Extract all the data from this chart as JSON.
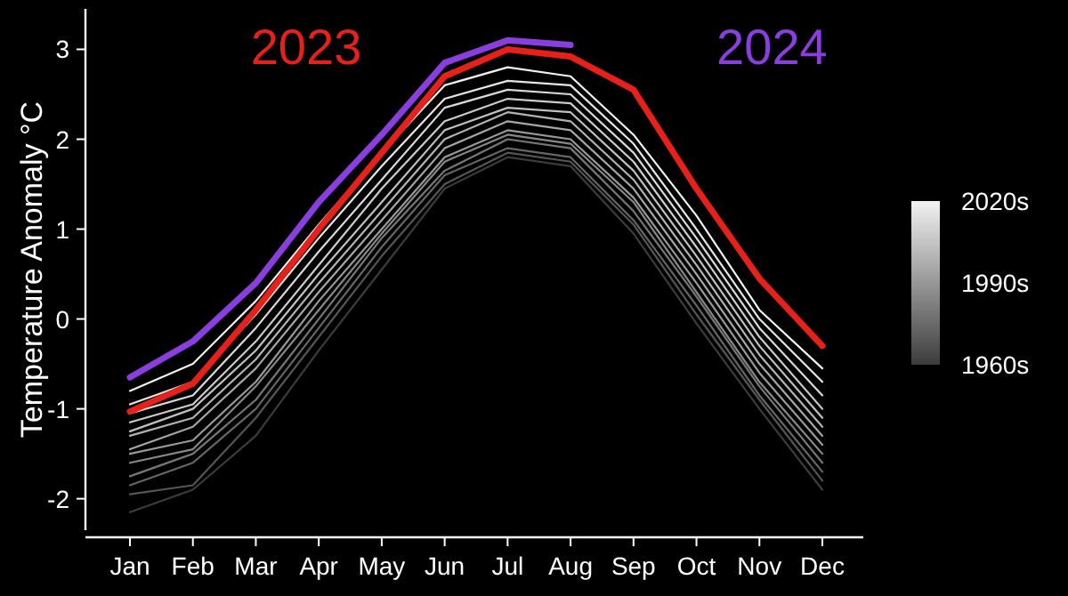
{
  "chart_data": {
    "type": "line",
    "ylabel": "Temperature Anomaly °C",
    "categories": [
      "Jan",
      "Feb",
      "Mar",
      "Apr",
      "May",
      "Jun",
      "Jul",
      "Aug",
      "Sep",
      "Oct",
      "Nov",
      "Dec"
    ],
    "ylim": [
      -2.35,
      3.45
    ],
    "yticks": [
      -2,
      -1,
      0,
      1,
      2,
      3
    ],
    "grid": false,
    "marker": "none",
    "line_style": "solid",
    "clim": [
      1960,
      2020
    ],
    "cticks": [
      {
        "value": 1960,
        "label": "1960s"
      },
      {
        "value": 1990,
        "label": "1990s"
      },
      {
        "value": 2020,
        "label": "2020s"
      }
    ],
    "series": [
      {
        "color": "#3c3c3c",
        "values": [
          -2.15,
          -1.9,
          -1.3,
          -0.35,
          0.55,
          1.45,
          1.8,
          1.7,
          0.95,
          -0.05,
          -1.0,
          -1.9
        ]
      },
      {
        "color": "#555555",
        "values": [
          -1.95,
          -1.85,
          -1.1,
          -0.2,
          0.7,
          1.5,
          1.85,
          1.75,
          1.05,
          0.05,
          -0.9,
          -1.8
        ]
      },
      {
        "color": "#666666",
        "values": [
          -1.85,
          -1.6,
          -1.0,
          -0.1,
          0.8,
          1.6,
          1.9,
          1.8,
          1.1,
          0.15,
          -0.85,
          -1.7
        ]
      },
      {
        "color": "#777777",
        "values": [
          -1.75,
          -1.5,
          -0.9,
          0.0,
          0.9,
          1.65,
          2.0,
          1.9,
          1.2,
          0.25,
          -0.75,
          -1.6
        ]
      },
      {
        "color": "#888888",
        "values": [
          -1.6,
          -1.45,
          -0.75,
          0.1,
          0.95,
          1.75,
          2.05,
          1.95,
          1.3,
          0.3,
          -0.7,
          -1.5
        ]
      },
      {
        "color": "#999999",
        "values": [
          -1.5,
          -1.35,
          -0.7,
          0.2,
          1.0,
          1.8,
          2.1,
          2.0,
          1.35,
          0.4,
          -0.6,
          -1.4
        ]
      },
      {
        "color": "#a6a6a6",
        "values": [
          -1.45,
          -1.2,
          -0.55,
          0.3,
          1.1,
          1.9,
          2.2,
          2.1,
          1.45,
          0.5,
          -0.5,
          -1.3
        ]
      },
      {
        "color": "#b3b3b3",
        "values": [
          -1.3,
          -1.1,
          -0.45,
          0.4,
          1.2,
          2.0,
          2.3,
          2.2,
          1.55,
          0.6,
          -0.4,
          -1.2
        ]
      },
      {
        "color": "#c0c0c0",
        "values": [
          -1.25,
          -1.0,
          -0.35,
          0.5,
          1.3,
          2.1,
          2.35,
          2.3,
          1.65,
          0.7,
          -0.3,
          -1.1
        ]
      },
      {
        "color": "#cccccc",
        "values": [
          -1.15,
          -0.95,
          -0.25,
          0.6,
          1.45,
          2.2,
          2.45,
          2.4,
          1.75,
          0.8,
          -0.2,
          -1.0
        ]
      },
      {
        "color": "#d9d9d9",
        "values": [
          -1.05,
          -0.85,
          -0.1,
          0.75,
          1.55,
          2.35,
          2.55,
          2.5,
          1.85,
          0.9,
          -0.1,
          -0.85
        ]
      },
      {
        "color": "#e6e6e6",
        "values": [
          -0.95,
          -0.7,
          0.05,
          0.9,
          1.7,
          2.45,
          2.65,
          2.6,
          1.95,
          1.0,
          0.0,
          -0.7
        ]
      },
      {
        "color": "#f2f2f2",
        "values": [
          -0.8,
          -0.5,
          0.2,
          1.05,
          1.85,
          2.6,
          2.8,
          2.7,
          2.05,
          1.15,
          0.1,
          -0.55
        ]
      },
      {
        "name": "2023",
        "color": "#e8201a",
        "values": [
          -1.03,
          -0.72,
          0.1,
          1.0,
          1.85,
          2.7,
          3.0,
          2.92,
          2.55,
          1.45,
          0.45,
          -0.3
        ]
      },
      {
        "name": "2024",
        "color": "#8a3ee0",
        "values": [
          -0.65,
          -0.25,
          0.4,
          1.3,
          2.05,
          2.85,
          3.1,
          3.05,
          null,
          null,
          null,
          null
        ]
      }
    ]
  }
}
